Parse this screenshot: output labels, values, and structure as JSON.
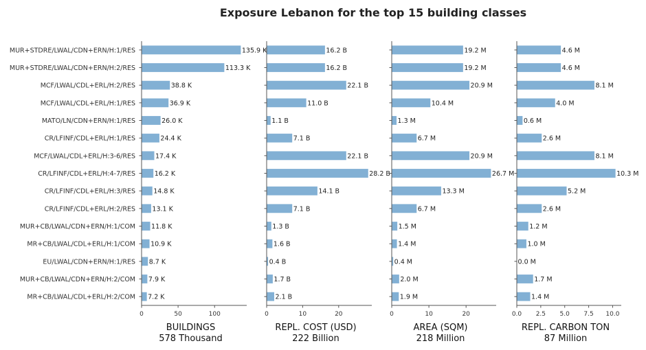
{
  "chart_data": {
    "type": "bar",
    "orientation": "horizontal",
    "title": "Exposure Lebanon for the top 15 building classes",
    "categories": [
      "MUR+STDRE/LWAL/CDN+ERN/H:1/RES",
      "MUR+STDRE/LWAL/CDN+ERN/H:2/RES",
      "MCF/LWAL/CDL+ERL/H:2/RES",
      "MCF/LWAL/CDL+ERL/H:1/RES",
      "MATO/LN/CDN+ERN/H:1/RES",
      "CR/LFINF/CDL+ERL/H:1/RES",
      "MCF/LWAL/CDL+ERL/H:3-6/RES",
      "CR/LFINF/CDL+ERL/H:4-7/RES",
      "CR/LFINF/CDL+ERL/H:3/RES",
      "CR/LFINF/CDL+ERL/H:2/RES",
      "MUR+CB/LWAL/CDN+ERN/H:1/COM",
      "MR+CB/LWAL/CDL+ERL/H:1/COM",
      "EU/LWAL/CDN+ERN/H:1/RES",
      "MUR+CB/LWAL/CDN+ERN/H:2/COM",
      "MR+CB/LWAL/CDL+ERL/H:2/COM"
    ],
    "panels": [
      {
        "xlabel": "BUILDINGS",
        "total_label": "578 Thousand",
        "xlim": [
          0,
          144
        ],
        "xticks": [
          0,
          50,
          100
        ],
        "values": [
          135.9,
          113.3,
          38.8,
          36.9,
          26.0,
          24.4,
          17.4,
          16.2,
          14.8,
          13.1,
          11.8,
          10.9,
          8.7,
          7.9,
          7.2
        ],
        "labels": [
          "135.9 K",
          "113.3 K",
          "38.8 K",
          "36.9 K",
          "26.0 K",
          "24.4 K",
          "17.4 K",
          "16.2 K",
          "14.8 K",
          "13.1 K",
          "11.8 K",
          "10.9 K",
          "8.7 K",
          "7.9 K",
          "7.2 K"
        ]
      },
      {
        "xlabel": "REPL. COST (USD)",
        "total_label": "222 Billion",
        "xlim": [
          0,
          29.2
        ],
        "xticks": [
          0,
          10,
          20
        ],
        "values": [
          16.2,
          16.2,
          22.1,
          11.0,
          1.1,
          7.1,
          22.1,
          28.2,
          14.1,
          7.1,
          1.3,
          1.6,
          0.4,
          1.7,
          2.1
        ],
        "labels": [
          "16.2 B",
          "16.2 B",
          "22.1 B",
          "11.0 B",
          "1.1 B",
          "7.1 B",
          "22.1 B",
          "28.2 B",
          "14.1 B",
          "7.1 B",
          "1.3 B",
          "1.6 B",
          "0.4 B",
          "1.7 B",
          "2.1 B"
        ]
      },
      {
        "xlabel": "AREA (SQM)",
        "total_label": "218 Million",
        "xlim": [
          0,
          28.1
        ],
        "xticks": [
          0,
          10,
          20
        ],
        "values": [
          19.2,
          19.2,
          20.9,
          10.4,
          1.3,
          6.7,
          20.9,
          26.7,
          13.3,
          6.7,
          1.5,
          1.4,
          0.4,
          2.0,
          1.9
        ],
        "labels": [
          "19.2 M",
          "19.2 M",
          "20.9 M",
          "10.4 M",
          "1.3 M",
          "6.7 M",
          "20.9 M",
          "26.7 M",
          "13.3 M",
          "6.7 M",
          "1.5 M",
          "1.4 M",
          "0.4 M",
          "2.0 M",
          "1.9 M"
        ]
      },
      {
        "xlabel": "REPL. CARBON TON",
        "total_label": "87 Million",
        "xlim": [
          0,
          10.9
        ],
        "xticks": [
          0.0,
          2.5,
          5.0,
          7.5,
          10.0
        ],
        "xtick_labels": [
          "0.0",
          "2.5",
          "5.0",
          "7.5",
          "10.0"
        ],
        "values": [
          4.6,
          4.6,
          8.1,
          4.0,
          0.6,
          2.6,
          8.1,
          10.3,
          5.2,
          2.6,
          1.2,
          1.0,
          0.0,
          1.7,
          1.4
        ],
        "labels": [
          "4.6 M",
          "4.6 M",
          "8.1 M",
          "4.0 M",
          "0.6 M",
          "2.6 M",
          "8.1 M",
          "10.3 M",
          "5.2 M",
          "2.6 M",
          "1.2 M",
          "1.0 M",
          "0.0 M",
          "1.7 M",
          "1.4 M"
        ]
      }
    ],
    "bar_color": "#82b0d4",
    "grid": false,
    "legend": "none"
  }
}
